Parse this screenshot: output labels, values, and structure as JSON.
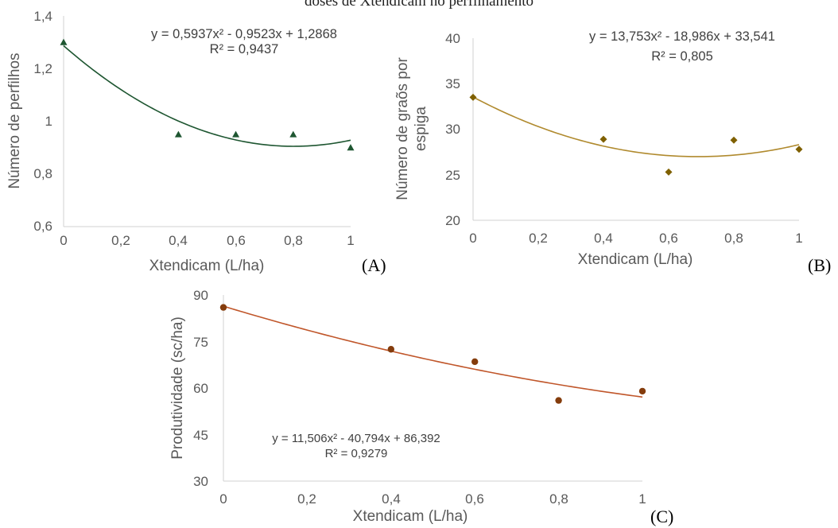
{
  "figure_title": "doses de Xtendicam no perfilhamento",
  "chart_data": [
    {
      "type": "scatter",
      "panel_label": "(A)",
      "xlabel": "Xtendicam (L/ha)",
      "ylabel": "Número de perfilhos",
      "xlim": [
        0,
        1
      ],
      "ylim": [
        0.6,
        1.4
      ],
      "xticks": [
        "0",
        "0,2",
        "0,4",
        "0,6",
        "0,8",
        "1"
      ],
      "yticks": [
        "0,6",
        "0,8",
        "1",
        "1,2",
        "1,4"
      ],
      "x": [
        0,
        0.4,
        0.6,
        0.8,
        1.0
      ],
      "y": [
        1.3,
        0.95,
        0.95,
        0.95,
        0.9
      ],
      "marker": "triangle",
      "color": "#1e5631",
      "trendline": {
        "type": "polynomial",
        "coefficients": [
          0.5937,
          -0.9523,
          1.2868
        ]
      },
      "equation": "y = 0,5937x² - 0,9523x + 1,2868",
      "r2": "R² = 0,9437",
      "grid": false
    },
    {
      "type": "scatter",
      "panel_label": "(B)",
      "xlabel": "Xtendicam (L/ha)",
      "ylabel": "Número de graõs por espiga",
      "ylabel_lines": [
        "Número de graõs por",
        "espiga"
      ],
      "xlim": [
        0,
        1
      ],
      "ylim": [
        20,
        40
      ],
      "xticks": [
        "0",
        "0,2",
        "0,4",
        "0,6",
        "0,8",
        "1"
      ],
      "yticks": [
        "20",
        "25",
        "30",
        "35",
        "40"
      ],
      "x": [
        0,
        0.4,
        0.6,
        0.8,
        1.0
      ],
      "y": [
        33.5,
        28.9,
        25.3,
        28.8,
        27.8
      ],
      "marker": "diamond",
      "color": "#7f6000",
      "trendline_color": "#b08a2e",
      "trendline": {
        "type": "polynomial",
        "coefficients": [
          13.753,
          -18.986,
          33.541
        ]
      },
      "equation": "y = 13,753x² - 18,986x + 33,541",
      "r2": "R² = 0,805",
      "grid": false
    },
    {
      "type": "scatter",
      "panel_label": "(C)",
      "xlabel": "Xtendicam (L/ha)",
      "ylabel": "Produtividade (sc/ha)",
      "xlim": [
        0,
        1
      ],
      "ylim": [
        30,
        90
      ],
      "xticks": [
        "0",
        "0,2",
        "0,4",
        "0,6",
        "0,8",
        "1"
      ],
      "yticks": [
        "30",
        "45",
        "60",
        "75",
        "90"
      ],
      "x": [
        0,
        0.4,
        0.6,
        0.8,
        1.0
      ],
      "y": [
        86,
        72.5,
        68.5,
        56,
        59
      ],
      "marker": "circle",
      "color": "#843c0c",
      "trendline_color": "#c0562a",
      "trendline": {
        "type": "polynomial",
        "coefficients": [
          11.506,
          -40.794,
          86.392
        ]
      },
      "equation": "y = 11,506x² - 40,794x + 86,392",
      "r2": "R² = 0,9279",
      "grid": false
    }
  ]
}
